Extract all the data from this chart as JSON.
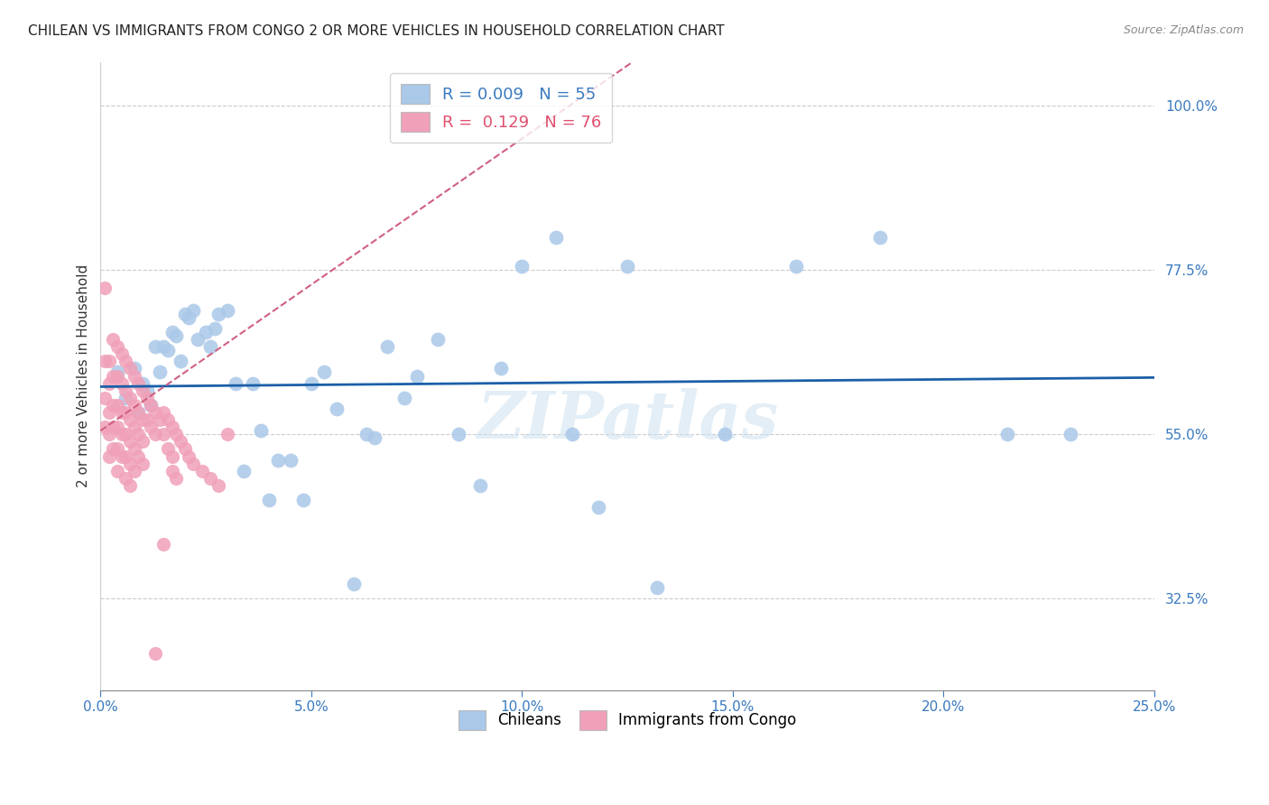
{
  "title": "CHILEAN VS IMMIGRANTS FROM CONGO 2 OR MORE VEHICLES IN HOUSEHOLD CORRELATION CHART",
  "source": "Source: ZipAtlas.com",
  "ylabel": "2 or more Vehicles in Household",
  "xlabel_ticks": [
    "0.0%",
    "5.0%",
    "10.0%",
    "15.0%",
    "20.0%",
    "25.0%"
  ],
  "xlabel_vals": [
    0.0,
    0.05,
    0.1,
    0.15,
    0.2,
    0.25
  ],
  "ylabel_ticks": [
    "32.5%",
    "55.0%",
    "77.5%",
    "100.0%"
  ],
  "ylabel_vals": [
    0.325,
    0.55,
    0.775,
    1.0
  ],
  "xlim": [
    0.0,
    0.25
  ],
  "ylim": [
    0.2,
    1.06
  ],
  "legend_blue_r": "0.009",
  "legend_blue_n": "55",
  "legend_pink_r": "0.129",
  "legend_pink_n": "76",
  "blue_color": "#aac8e8",
  "pink_color": "#f0a0b8",
  "blue_line_color": "#1a5fa8",
  "pink_line_color": "#d04060",
  "pink_dashed_color": "#d06080",
  "watermark": "ZIPatlas",
  "blue_x": [
    0.004,
    0.006,
    0.008,
    0.009,
    0.01,
    0.011,
    0.012,
    0.013,
    0.014,
    0.015,
    0.016,
    0.017,
    0.018,
    0.019,
    0.02,
    0.021,
    0.022,
    0.023,
    0.025,
    0.026,
    0.027,
    0.028,
    0.03,
    0.032,
    0.034,
    0.036,
    0.038,
    0.04,
    0.042,
    0.045,
    0.048,
    0.05,
    0.053,
    0.056,
    0.06,
    0.063,
    0.065,
    0.068,
    0.072,
    0.075,
    0.08,
    0.085,
    0.09,
    0.095,
    0.1,
    0.108,
    0.112,
    0.118,
    0.125,
    0.132,
    0.148,
    0.165,
    0.185,
    0.215,
    0.23
  ],
  "blue_y": [
    0.635,
    0.6,
    0.64,
    0.58,
    0.62,
    0.61,
    0.59,
    0.67,
    0.635,
    0.67,
    0.665,
    0.69,
    0.685,
    0.65,
    0.715,
    0.71,
    0.72,
    0.68,
    0.69,
    0.67,
    0.695,
    0.715,
    0.72,
    0.62,
    0.5,
    0.62,
    0.555,
    0.46,
    0.515,
    0.515,
    0.46,
    0.62,
    0.635,
    0.585,
    0.345,
    0.55,
    0.545,
    0.67,
    0.6,
    0.63,
    0.68,
    0.55,
    0.48,
    0.64,
    0.78,
    0.82,
    0.55,
    0.45,
    0.78,
    0.34,
    0.55,
    0.78,
    0.82,
    0.55,
    0.55
  ],
  "pink_x": [
    0.001,
    0.001,
    0.001,
    0.001,
    0.002,
    0.002,
    0.002,
    0.002,
    0.002,
    0.003,
    0.003,
    0.003,
    0.003,
    0.003,
    0.004,
    0.004,
    0.004,
    0.004,
    0.004,
    0.004,
    0.005,
    0.005,
    0.005,
    0.005,
    0.005,
    0.006,
    0.006,
    0.006,
    0.006,
    0.006,
    0.006,
    0.007,
    0.007,
    0.007,
    0.007,
    0.007,
    0.007,
    0.008,
    0.008,
    0.008,
    0.008,
    0.008,
    0.009,
    0.009,
    0.009,
    0.009,
    0.01,
    0.01,
    0.01,
    0.01,
    0.011,
    0.011,
    0.012,
    0.012,
    0.013,
    0.013,
    0.014,
    0.015,
    0.015,
    0.016,
    0.017,
    0.018,
    0.019,
    0.02,
    0.021,
    0.022,
    0.024,
    0.026,
    0.028,
    0.03,
    0.016,
    0.017,
    0.017,
    0.018,
    0.015,
    0.013
  ],
  "pink_y": [
    0.75,
    0.65,
    0.6,
    0.56,
    0.65,
    0.62,
    0.58,
    0.55,
    0.52,
    0.68,
    0.63,
    0.59,
    0.56,
    0.53,
    0.67,
    0.63,
    0.59,
    0.56,
    0.53,
    0.5,
    0.66,
    0.62,
    0.58,
    0.55,
    0.52,
    0.65,
    0.61,
    0.58,
    0.55,
    0.52,
    0.49,
    0.64,
    0.6,
    0.57,
    0.54,
    0.51,
    0.48,
    0.63,
    0.59,
    0.56,
    0.53,
    0.5,
    0.62,
    0.58,
    0.55,
    0.52,
    0.61,
    0.57,
    0.54,
    0.51,
    0.6,
    0.57,
    0.59,
    0.56,
    0.58,
    0.55,
    0.57,
    0.58,
    0.55,
    0.57,
    0.56,
    0.55,
    0.54,
    0.53,
    0.52,
    0.51,
    0.5,
    0.49,
    0.48,
    0.55,
    0.53,
    0.52,
    0.5,
    0.49,
    0.4,
    0.25
  ]
}
